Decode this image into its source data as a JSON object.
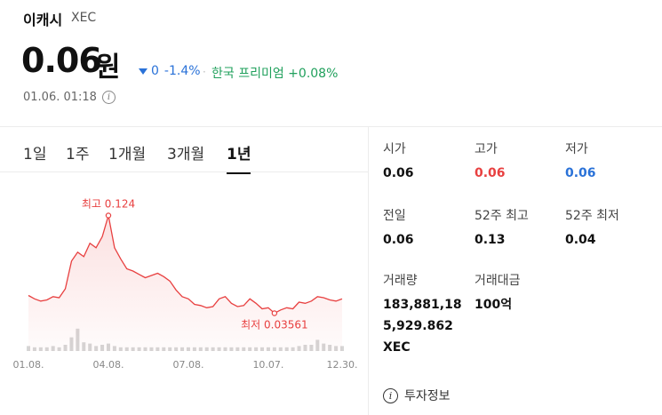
{
  "coin": {
    "name": "이캐시",
    "ticker": "XEC"
  },
  "price": {
    "value": "0.06",
    "unit": "원",
    "change_abs": "0",
    "change_pct": "-1.4%",
    "premium": "한국 프리미엄 +0.08%",
    "separator": "·",
    "timestamp": "01.06. 01:18",
    "direction": "down"
  },
  "tabs": [
    {
      "label": "1일",
      "active": false
    },
    {
      "label": "1주",
      "active": false
    },
    {
      "label": "1개월",
      "active": false
    },
    {
      "label": "3개월",
      "active": false
    },
    {
      "label": "1년",
      "active": true
    }
  ],
  "stats": {
    "open": {
      "label": "시가",
      "value": "0.06"
    },
    "high": {
      "label": "고가",
      "value": "0.06"
    },
    "low": {
      "label": "저가",
      "value": "0.06"
    },
    "prev": {
      "label": "전일",
      "value": "0.06"
    },
    "high52": {
      "label": "52주 최고",
      "value": "0.13"
    },
    "low52": {
      "label": "52주 최저",
      "value": "0.04"
    },
    "volume": {
      "label": "거래량",
      "line1": "183,881,18",
      "line2": "5,929.862",
      "line3": "XEC"
    },
    "turnover": {
      "label": "거래대금",
      "value": "100억"
    }
  },
  "invest_info_label": "투자정보",
  "colors": {
    "up": "#e84040",
    "down": "#2a72d8",
    "premium": "#20a05c",
    "line": "#e84040"
  },
  "chart_data": {
    "type": "line",
    "x": [
      "01.08.",
      "01.15.",
      "01.22.",
      "01.29.",
      "02.05.",
      "02.12.",
      "02.19.",
      "02.26.",
      "03.04.",
      "03.11.",
      "03.18.",
      "03.25.",
      "04.01.",
      "04.08.",
      "04.15.",
      "04.22.",
      "04.29.",
      "05.06.",
      "05.13.",
      "05.20.",
      "05.27.",
      "06.03.",
      "06.10.",
      "06.17.",
      "06.24.",
      "07.01.",
      "07.08.",
      "07.15.",
      "07.22.",
      "07.29.",
      "08.05.",
      "08.12.",
      "08.19.",
      "08.26.",
      "09.02.",
      "09.09.",
      "09.16.",
      "09.23.",
      "09.30.",
      "10.07.",
      "10.14.",
      "10.21.",
      "10.28.",
      "11.04.",
      "11.11.",
      "11.18.",
      "11.25.",
      "12.02.",
      "12.09.",
      "12.16.",
      "12.23.",
      "12.30."
    ],
    "values": [
      0.052,
      0.049,
      0.047,
      0.048,
      0.051,
      0.05,
      0.058,
      0.083,
      0.091,
      0.087,
      0.099,
      0.095,
      0.105,
      0.124,
      0.095,
      0.085,
      0.076,
      0.074,
      0.071,
      0.068,
      0.07,
      0.072,
      0.069,
      0.065,
      0.057,
      0.051,
      0.049,
      0.044,
      0.043,
      0.041,
      0.042,
      0.049,
      0.051,
      0.045,
      0.042,
      0.043,
      0.049,
      0.045,
      0.04,
      0.041,
      0.036,
      0.039,
      0.041,
      0.04,
      0.046,
      0.045,
      0.047,
      0.051,
      0.05,
      0.048,
      0.047,
      0.049
    ],
    "volumes": [
      4,
      3,
      3,
      3,
      4,
      3,
      5,
      11,
      18,
      7,
      6,
      4,
      5,
      6,
      4,
      3,
      3,
      3,
      3,
      3,
      3,
      3,
      3,
      3,
      3,
      3,
      3,
      3,
      3,
      3,
      3,
      3,
      3,
      3,
      3,
      3,
      3,
      3,
      3,
      3,
      3,
      3,
      3,
      3,
      4,
      5,
      5,
      9,
      6,
      5,
      4,
      4
    ],
    "high_label": "최고 0.124",
    "low_label": "최저 0.03561",
    "x_ticks": [
      "01.08.",
      "04.08.",
      "07.08.",
      "10.07.",
      "12.30."
    ],
    "grid": false
  }
}
